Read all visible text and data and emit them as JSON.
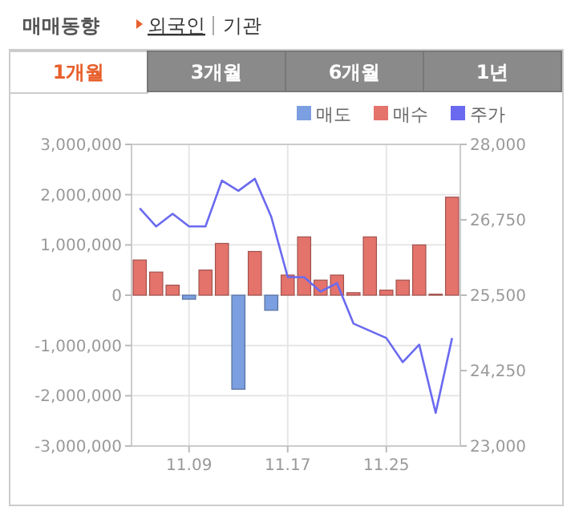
{
  "chart_data": {
    "type": "bar",
    "title": "매매동향",
    "annotations": [
      "외국인",
      "기관",
      "1개월",
      "3개월",
      "6개월",
      "1년"
    ],
    "categories": [
      null,
      null,
      null,
      "11.09",
      null,
      null,
      null,
      null,
      null,
      "11.17",
      null,
      null,
      null,
      null,
      null,
      "11.25",
      null,
      null,
      null,
      null
    ],
    "series": [
      {
        "name": "매도",
        "color": "#7b9fe0",
        "values": [
          null,
          null,
          null,
          -80000,
          null,
          null,
          -1870000,
          null,
          -300000,
          null,
          null,
          null,
          null,
          null,
          null,
          null,
          null,
          null,
          null,
          null
        ]
      },
      {
        "name": "매수",
        "color": "#e4736c",
        "values": [
          700000,
          460000,
          200000,
          null,
          500000,
          1030000,
          null,
          870000,
          null,
          400000,
          1160000,
          300000,
          400000,
          50000,
          1160000,
          100000,
          300000,
          1000000,
          20000,
          1950000
        ]
      },
      {
        "name": "주가",
        "type": "line",
        "axis": "y2",
        "color": "#6a6af0",
        "values": [
          26940,
          26640,
          26850,
          26640,
          26640,
          27400,
          27230,
          27430,
          26800,
          25800,
          25800,
          25560,
          25700,
          25030,
          24910,
          24790,
          24390,
          24680,
          23550,
          24790
        ]
      }
    ],
    "ylim": [
      -3000000,
      3000000
    ],
    "yticks": [
      {
        "value": -3000000,
        "label": "-3,000,000"
      },
      {
        "value": -2000000,
        "label": "-2,000,000"
      },
      {
        "value": -1000000,
        "label": "-1,000,000"
      },
      0,
      {
        "value": 1000000,
        "label": "1,000,000"
      },
      {
        "value": 2000000,
        "label": "2,000,000"
      },
      {
        "value": 3000000,
        "label": "3,000,000"
      }
    ],
    "y2lim": [
      23000,
      28000
    ],
    "y2ticks": [
      {
        "value": 23000,
        "label": "23,000"
      },
      {
        "value": 24250,
        "label": "24,250"
      },
      {
        "value": 25500,
        "label": "25,500"
      },
      {
        "value": 26750,
        "label": "26,750"
      },
      {
        "value": 28000,
        "label": "28,000"
      }
    ],
    "grid": true,
    "legend": "top right"
  }
}
